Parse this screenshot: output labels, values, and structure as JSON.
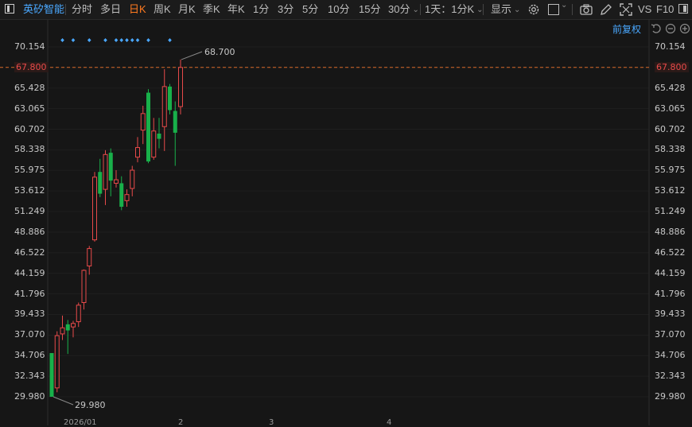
{
  "stock": {
    "name": "英矽智能"
  },
  "periods": [
    "分时",
    "多日",
    "日K",
    "周K",
    "月K",
    "季K",
    "年K",
    "1分",
    "3分",
    "5分",
    "10分",
    "15分",
    "30分"
  ],
  "active_period": "日K",
  "combo": {
    "label": "1天：1分K"
  },
  "display": {
    "label": "显示"
  },
  "right_tools": {
    "vs": "VS",
    "f10": "F10"
  },
  "adjust": {
    "label": "前复权"
  },
  "price_axis": {
    "ticks": [
      "70.154",
      "67.800",
      "65.428",
      "63.065",
      "60.702",
      "58.338",
      "55.975",
      "53.612",
      "51.249",
      "48.886",
      "46.522",
      "44.159",
      "41.796",
      "39.433",
      "37.070",
      "34.706",
      "32.343",
      "29.980"
    ],
    "current": "67.800"
  },
  "annotations": {
    "high": "68.700",
    "low": "29.980"
  },
  "x_labels": [
    "2026/01",
    "2",
    "3",
    "4"
  ],
  "colors": {
    "up": "#e84a4a",
    "down": "#18b04a",
    "accent": "#ff7a1f",
    "link": "#4aa8ff",
    "current_line": "#d86a2a"
  },
  "chart_data": {
    "type": "candlestick",
    "ylim": [
      29.98,
      70.154
    ],
    "candles": [
      {
        "o": 35.0,
        "h": 35.0,
        "l": 29.98,
        "c": 29.98
      },
      {
        "o": 31.0,
        "h": 37.5,
        "l": 30.5,
        "c": 37.0
      },
      {
        "o": 37.2,
        "h": 39.3,
        "l": 36.5,
        "c": 37.9
      },
      {
        "o": 38.3,
        "h": 38.8,
        "l": 34.9,
        "c": 37.6
      },
      {
        "o": 38.0,
        "h": 38.7,
        "l": 36.8,
        "c": 38.4
      },
      {
        "o": 38.6,
        "h": 40.8,
        "l": 38.0,
        "c": 40.5
      },
      {
        "o": 40.8,
        "h": 44.6,
        "l": 40.0,
        "c": 44.5
      },
      {
        "o": 45.0,
        "h": 47.3,
        "l": 44.0,
        "c": 47.0
      },
      {
        "o": 48.0,
        "h": 55.8,
        "l": 47.8,
        "c": 55.2
      },
      {
        "o": 55.8,
        "h": 57.3,
        "l": 52.9,
        "c": 53.3
      },
      {
        "o": 53.8,
        "h": 58.3,
        "l": 52.0,
        "c": 57.8
      },
      {
        "o": 58.0,
        "h": 58.5,
        "l": 53.0,
        "c": 54.8
      },
      {
        "o": 54.5,
        "h": 56.0,
        "l": 54.0,
        "c": 54.9
      },
      {
        "o": 54.5,
        "h": 55.3,
        "l": 51.4,
        "c": 51.8
      },
      {
        "o": 52.5,
        "h": 53.8,
        "l": 51.8,
        "c": 53.2
      },
      {
        "o": 53.9,
        "h": 56.5,
        "l": 53.0,
        "c": 56.0
      },
      {
        "o": 57.5,
        "h": 59.8,
        "l": 56.9,
        "c": 58.6
      },
      {
        "o": 60.6,
        "h": 63.4,
        "l": 59.0,
        "c": 62.5
      },
      {
        "o": 64.9,
        "h": 65.3,
        "l": 56.8,
        "c": 57.0
      },
      {
        "o": 57.5,
        "h": 62.0,
        "l": 57.2,
        "c": 60.5
      },
      {
        "o": 60.2,
        "h": 62.0,
        "l": 58.5,
        "c": 59.6
      },
      {
        "o": 61.0,
        "h": 67.6,
        "l": 58.2,
        "c": 65.6
      },
      {
        "o": 65.6,
        "h": 65.9,
        "l": 62.4,
        "c": 62.9
      },
      {
        "o": 62.8,
        "h": 63.9,
        "l": 56.5,
        "c": 60.3
      },
      {
        "o": 63.3,
        "h": 68.7,
        "l": 62.4,
        "c": 67.8
      }
    ],
    "markers": [
      2,
      4,
      7,
      10,
      12,
      13,
      14,
      15,
      16,
      18,
      22
    ]
  }
}
